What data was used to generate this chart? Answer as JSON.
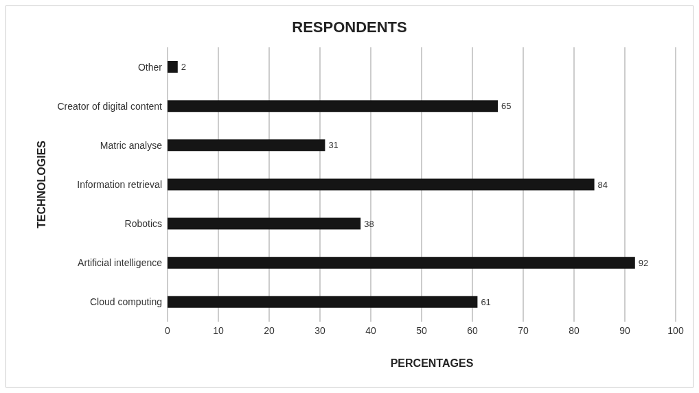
{
  "chart_data": {
    "type": "bar",
    "orientation": "horizontal",
    "title": "RESPONDENTS",
    "xlabel": "PERCENTAGES",
    "ylabel": "TECHNOLOGIES",
    "categories": [
      "Other",
      "Creator of digital content",
      "Matric analyse",
      "Information retrieval",
      "Robotics",
      "Artificial intelligence",
      "Cloud computing"
    ],
    "values": [
      2,
      65,
      31,
      84,
      38,
      92,
      61
    ],
    "color": "#151515",
    "xlim": [
      0,
      100
    ],
    "xticks": [
      0,
      10,
      20,
      30,
      40,
      50,
      60,
      70,
      80,
      90,
      100
    ],
    "grid": "x",
    "data_labels": true
  }
}
